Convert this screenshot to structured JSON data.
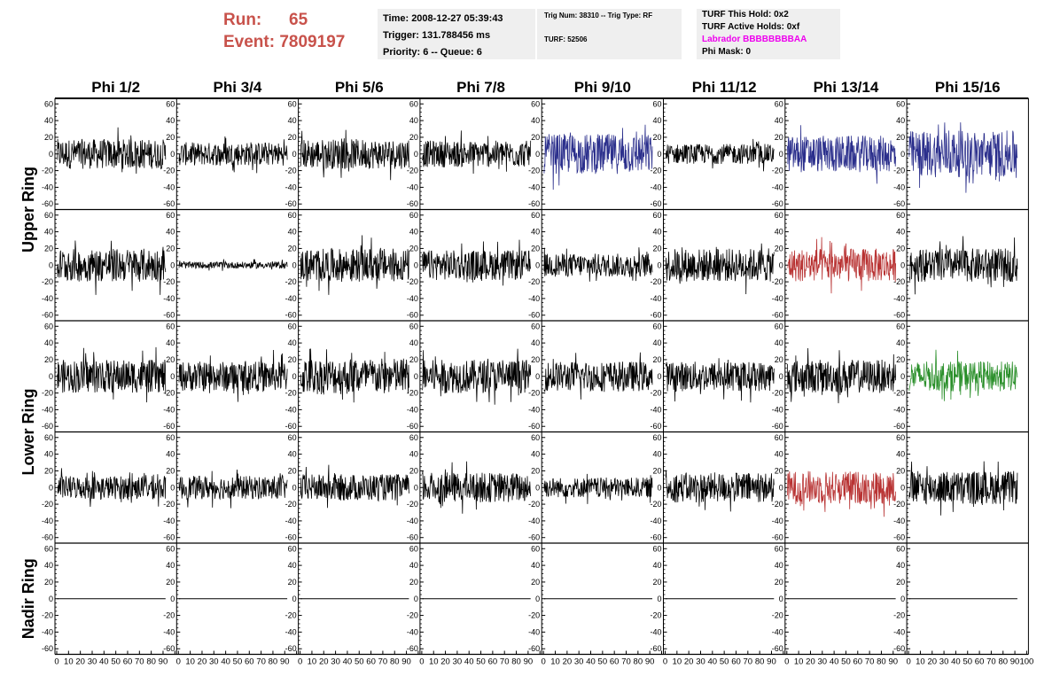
{
  "header": {
    "run_label": "Run:",
    "run_value": "65",
    "event_label": "Event:",
    "event_value": "7809197"
  },
  "time_box": {
    "time": "Time: 2008-12-27 05:39:43",
    "trigger": "Trigger: 131.788456 ms",
    "priority": "Priority: 6 -- Queue: 6"
  },
  "trig_box": {
    "trig": "Trig Num: 38310 -- Trig Type: RF",
    "turf": "TURF: 52506"
  },
  "turf_box": {
    "this_hold": "TURF This Hold: 0x2",
    "active_holds": "TURF Active Holds: 0xf",
    "labrador": "Labrador BBBBBBBBAA",
    "phi_mask": "Phi Mask: 0"
  },
  "columns": [
    "Phi 1/2",
    "Phi 3/4",
    "Phi 5/6",
    "Phi 7/8",
    "Phi 9/10",
    "Phi 11/12",
    "Phi 13/14",
    "Phi 15/16"
  ],
  "ring_labels": [
    {
      "label": "Upper Ring",
      "rows": [
        0,
        1
      ]
    },
    {
      "label": "Lower Ring",
      "rows": [
        2,
        3
      ]
    },
    {
      "label": "Nadir Ring",
      "rows": [
        4
      ]
    }
  ],
  "chart_data": {
    "type": "line",
    "xlim": [
      0,
      100
    ],
    "ylim": [
      -60,
      60
    ],
    "y_ticks": [
      "60",
      "40",
      "20",
      "0",
      "-20",
      "-40",
      "-60"
    ],
    "x_tick_labels": [
      "0",
      "10",
      "20",
      "30",
      "40",
      "50",
      "60",
      "70",
      "80",
      "90",
      "100"
    ],
    "colors": {
      "default": "#000000",
      "blue": "#2b2f8c",
      "red": "#b83232",
      "green": "#2a8f2a"
    },
    "panels": [
      [
        {
          "amp": 18,
          "color": "default"
        },
        {
          "amp": 14,
          "color": "default"
        },
        {
          "amp": 18,
          "color": "default"
        },
        {
          "amp": 16,
          "color": "default"
        },
        {
          "amp": 24,
          "color": "blue"
        },
        {
          "amp": 12,
          "color": "default"
        },
        {
          "amp": 22,
          "color": "blue"
        },
        {
          "amp": 28,
          "color": "blue"
        }
      ],
      [
        {
          "amp": 20,
          "color": "default"
        },
        {
          "amp": 4,
          "color": "default"
        },
        {
          "amp": 20,
          "color": "default"
        },
        {
          "amp": 18,
          "color": "default"
        },
        {
          "amp": 14,
          "color": "default"
        },
        {
          "amp": 20,
          "color": "default"
        },
        {
          "amp": 20,
          "color": "red"
        },
        {
          "amp": 20,
          "color": "default"
        }
      ],
      [
        {
          "amp": 20,
          "color": "default"
        },
        {
          "amp": 18,
          "color": "default"
        },
        {
          "amp": 22,
          "color": "default"
        },
        {
          "amp": 20,
          "color": "default"
        },
        {
          "amp": 18,
          "color": "default"
        },
        {
          "amp": 18,
          "color": "default"
        },
        {
          "amp": 20,
          "color": "default"
        },
        {
          "amp": 18,
          "color": "green"
        }
      ],
      [
        {
          "amp": 14,
          "color": "default"
        },
        {
          "amp": 14,
          "color": "default"
        },
        {
          "amp": 16,
          "color": "default"
        },
        {
          "amp": 18,
          "color": "default"
        },
        {
          "amp": 12,
          "color": "default"
        },
        {
          "amp": 18,
          "color": "default"
        },
        {
          "amp": 20,
          "color": "red"
        },
        {
          "amp": 20,
          "color": "default"
        }
      ],
      [
        {
          "amp": 0,
          "color": "default"
        },
        {
          "amp": 0,
          "color": "default"
        },
        {
          "amp": 0,
          "color": "default"
        },
        {
          "amp": 0,
          "color": "default"
        },
        {
          "amp": 0,
          "color": "default"
        },
        {
          "amp": 0,
          "color": "default"
        },
        {
          "amp": 0,
          "color": "default"
        },
        {
          "amp": 0,
          "color": "default"
        }
      ]
    ]
  }
}
